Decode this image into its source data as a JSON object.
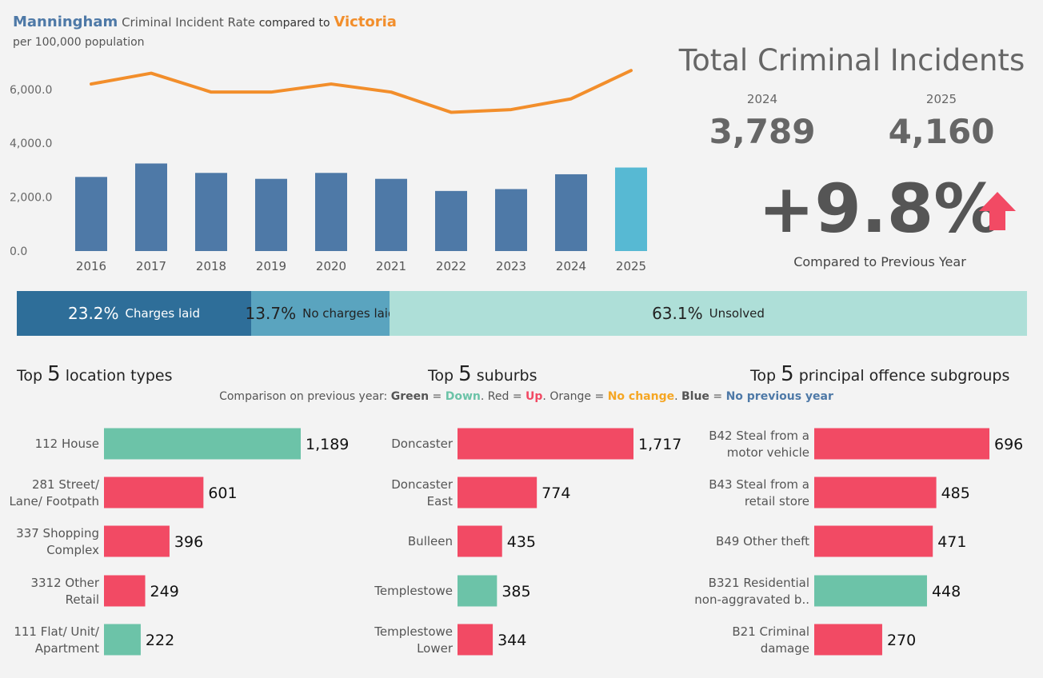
{
  "header": {
    "title_area": "Manningham",
    "title_mid": "Criminal Incident Rate",
    "title_compared": "compared to",
    "title_state": "Victoria",
    "subtitle": "per 100,000 population"
  },
  "colors": {
    "bar_dark": "#4e79a7",
    "bar_highlight": "#57b9d3",
    "line": "#f28e2b",
    "green": "#6cc3a8",
    "red": "#f24a64",
    "orange": "#f5a623",
    "blue": "#4e79a7"
  },
  "kpi": {
    "title": "Total Criminal Incidents",
    "year_prev": "2024",
    "year_curr": "2025",
    "value_prev": "3,789",
    "value_curr": "4,160",
    "change": "+9.8%",
    "change_label": "Compared to Previous Year",
    "arrow_icon": "arrow-up-icon"
  },
  "outcomes": [
    {
      "pct": "23.2%",
      "label": "Charges laid",
      "share": 23.2
    },
    {
      "pct": "13.7%",
      "label": "No charges laid",
      "share": 13.7
    },
    {
      "pct": "63.1%",
      "label": "Unsolved",
      "share": 63.1
    }
  ],
  "legend": {
    "prefix": "Comparison on previous year:",
    "green_word": "Green",
    "green_meaning": "Down",
    "red_word": "Red",
    "red_meaning": "Up",
    "orange_word": "Orange",
    "orange_meaning": "No change",
    "blue_word": "Blue",
    "blue_meaning": "No previous year"
  },
  "panels": {
    "locations": {
      "title_pre": "Top",
      "title_num": "5",
      "title_post": "location types"
    },
    "suburbs": {
      "title_pre": "Top",
      "title_num": "5",
      "title_post": "suburbs"
    },
    "offences": {
      "title_pre": "Top",
      "title_num": "5",
      "title_post": "principal offence subgroups"
    }
  },
  "chart_data": [
    {
      "type": "bar",
      "categories": [
        "2016",
        "2017",
        "2018",
        "2019",
        "2020",
        "2021",
        "2022",
        "2023",
        "2024",
        "2025"
      ],
      "series": [
        {
          "name": "Manningham",
          "values": [
            2750,
            3250,
            2900,
            2680,
            2900,
            2680,
            2230,
            2300,
            2850,
            3100
          ]
        },
        {
          "name": "Victoria",
          "values": [
            6200,
            6600,
            5900,
            5900,
            6200,
            5900,
            5150,
            5250,
            5650,
            6700
          ]
        }
      ],
      "yticks": [
        "0.0",
        "2,000.0",
        "4,000.0",
        "6,000.0"
      ],
      "ylim": [
        0,
        7000
      ],
      "highlight_category": "2025"
    },
    {
      "type": "bar",
      "orientation": "horizontal",
      "categories": [
        [
          "112 House"
        ],
        [
          "281 Street/",
          "Lane/ Footpath"
        ],
        [
          "337 Shopping",
          "Complex"
        ],
        [
          "3312 Other",
          "Retail"
        ],
        [
          "111 Flat/ Unit/",
          "Apartment"
        ]
      ],
      "values": [
        1189,
        601,
        396,
        249,
        222
      ],
      "labels": [
        "1,189",
        "601",
        "396",
        "249",
        "222"
      ],
      "status": [
        "down",
        "up",
        "up",
        "up",
        "down"
      ]
    },
    {
      "type": "bar",
      "orientation": "horizontal",
      "categories": [
        [
          "Doncaster"
        ],
        [
          "Doncaster",
          "East"
        ],
        [
          "Bulleen"
        ],
        [
          "Templestowe"
        ],
        [
          "Templestowe",
          "Lower"
        ]
      ],
      "values": [
        1717,
        774,
        435,
        385,
        344
      ],
      "labels": [
        "1,717",
        "774",
        "435",
        "385",
        "344"
      ],
      "status": [
        "up",
        "up",
        "up",
        "down",
        "up"
      ]
    },
    {
      "type": "bar",
      "orientation": "horizontal",
      "categories": [
        [
          "B42 Steal from a",
          "motor vehicle"
        ],
        [
          "B43 Steal from a",
          "retail store"
        ],
        [
          "B49 Other theft"
        ],
        [
          "B321 Residential",
          "non-aggravated b.."
        ],
        [
          "B21 Criminal",
          "damage"
        ]
      ],
      "values": [
        696,
        485,
        471,
        448,
        270
      ],
      "labels": [
        "696",
        "485",
        "471",
        "448",
        "270"
      ],
      "status": [
        "up",
        "up",
        "up",
        "down",
        "up"
      ]
    }
  ]
}
